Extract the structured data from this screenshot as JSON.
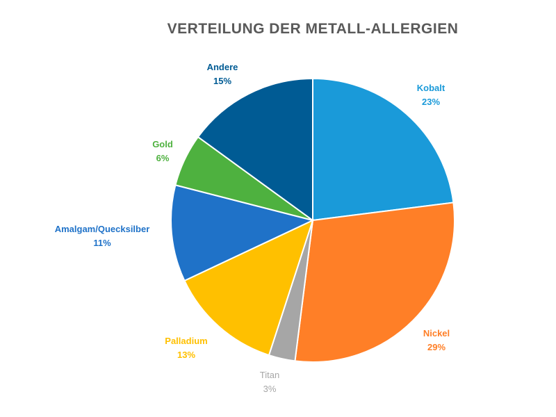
{
  "chart_data": {
    "type": "pie",
    "title": "VERTEILUNG DER METALL-ALLERGIEN",
    "slices": [
      {
        "name": "Kobalt",
        "value": 23,
        "value_label": "23%",
        "color": "#1a9ad9"
      },
      {
        "name": "Nickel",
        "value": 29,
        "value_label": "29%",
        "color": "#ff7f27"
      },
      {
        "name": "Titan",
        "value": 3,
        "value_label": "3%",
        "color": "#a6a6a6"
      },
      {
        "name": "Palladium",
        "value": 13,
        "value_label": "13%",
        "color": "#ffc000"
      },
      {
        "name": "Amalgam/Quecksilber",
        "value": 11,
        "value_label": "11%",
        "color": "#1f72c8"
      },
      {
        "name": "Gold",
        "value": 6,
        "value_label": "6%",
        "color": "#4eb13f"
      },
      {
        "name": "Andere",
        "value": 15,
        "value_label": "15%",
        "color": "#005b94"
      }
    ],
    "legend": "none"
  }
}
